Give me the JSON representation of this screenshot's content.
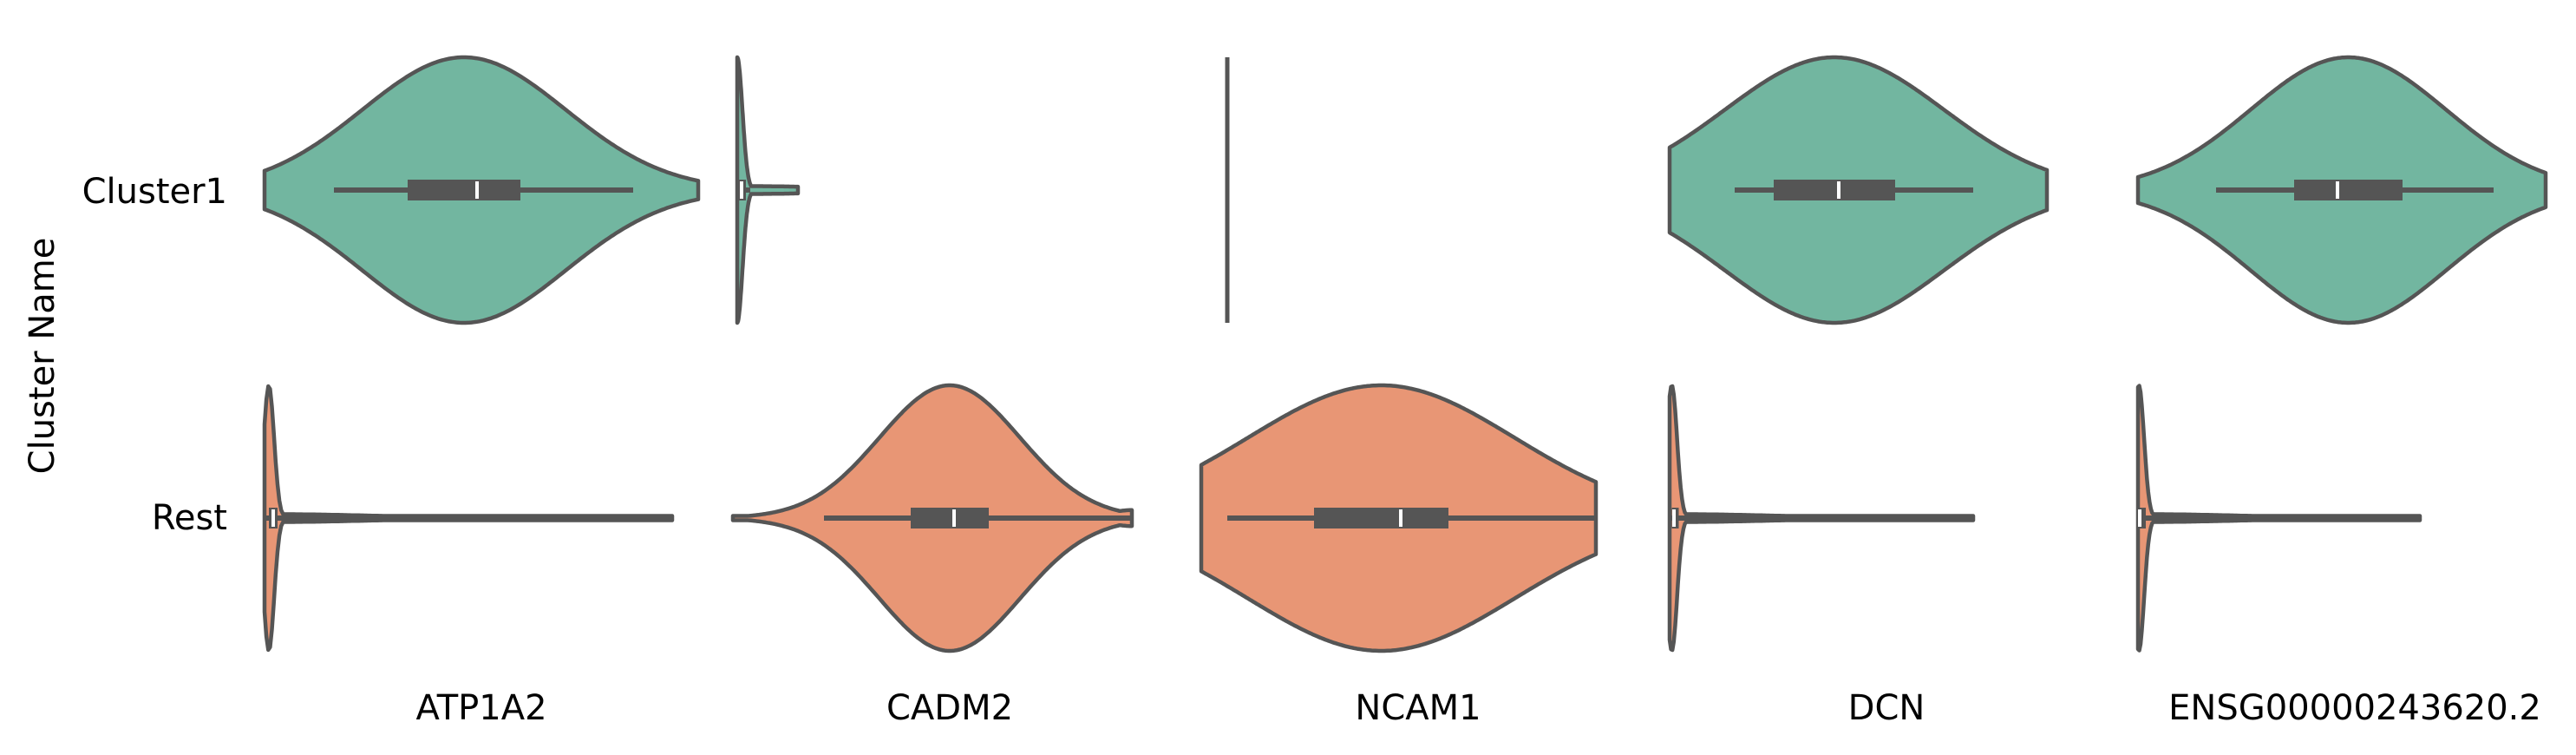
{
  "chart_data": {
    "type": "violin",
    "ylabel": "Cluster Name",
    "rows": [
      "Cluster1",
      "Rest"
    ],
    "colors": {
      "Cluster1": "#72b6a0",
      "Rest": "#e89675",
      "line": "#555555",
      "median": "#ffffff"
    },
    "panels": [
      {
        "gene": "ATP1A2",
        "xlim": [
          0,
          10
        ],
        "violins": [
          {
            "row": "Cluster1",
            "whisker": [
              1.6,
              8.5
            ],
            "q1": 3.3,
            "median": 4.9,
            "q3": 5.9,
            "clip": [
              0.0,
              10.0
            ],
            "shape": "smooth"
          },
          {
            "row": "Rest",
            "whisker": [
              0.0,
              9.4
            ],
            "q1": 0.1,
            "median": 0.2,
            "q3": 0.3,
            "clip": [
              0.0,
              9.4
            ],
            "shape": "spike"
          }
        ]
      },
      {
        "gene": "CADM2",
        "xlim": [
          0,
          10
        ],
        "violins": [
          {
            "row": "Cluster1",
            "whisker": [
              0.1,
              0.4
            ],
            "q1": 0.1,
            "median": 0.2,
            "q3": 0.3,
            "clip": [
              0.1,
              1.5
            ],
            "shape": "spike"
          },
          {
            "row": "Rest",
            "whisker": [
              2.1,
              9.2
            ],
            "q1": 4.1,
            "median": 5.1,
            "q3": 5.9,
            "clip": [
              0.0,
              9.2
            ],
            "shape": "smooth"
          }
        ]
      },
      {
        "gene": "NCAM1",
        "xlim": [
          0,
          10
        ],
        "violins": [
          {
            "row": "Cluster1",
            "whisker": [
              0.6,
              0.6
            ],
            "q1": 0.6,
            "median": 0.6,
            "q3": 0.6,
            "clip": [
              0.6,
              0.6
            ],
            "shape": "line"
          },
          {
            "row": "Rest",
            "whisker": [
              0.6,
              9.1
            ],
            "q1": 2.6,
            "median": 4.6,
            "q3": 5.7,
            "clip": [
              0.0,
              9.1
            ],
            "shape": "wavy"
          }
        ]
      },
      {
        "gene": "DCN",
        "xlim": [
          0,
          10
        ],
        "violins": [
          {
            "row": "Cluster1",
            "whisker": [
              1.5,
              7.0
            ],
            "q1": 2.4,
            "median": 3.9,
            "q3": 5.2,
            "clip": [
              0.0,
              8.7
            ],
            "shape": "smooth"
          },
          {
            "row": "Rest",
            "whisker": [
              0.0,
              7.0
            ],
            "q1": 0.05,
            "median": 0.1,
            "q3": 0.15,
            "clip": [
              0.0,
              7.0
            ],
            "shape": "spike"
          }
        ]
      },
      {
        "gene": "ENSG00000243620.2",
        "xlim": [
          0,
          10
        ],
        "violins": [
          {
            "row": "Cluster1",
            "whisker": [
              1.8,
              8.2
            ],
            "q1": 3.6,
            "median": 4.6,
            "q3": 6.1,
            "clip": [
              0.0,
              9.4
            ],
            "shape": "smooth"
          },
          {
            "row": "Rest",
            "whisker": [
              0.0,
              6.5
            ],
            "q1": 0.02,
            "median": 0.04,
            "q3": 0.06,
            "clip": [
              0.0,
              6.5
            ],
            "shape": "spike"
          }
        ]
      }
    ]
  }
}
